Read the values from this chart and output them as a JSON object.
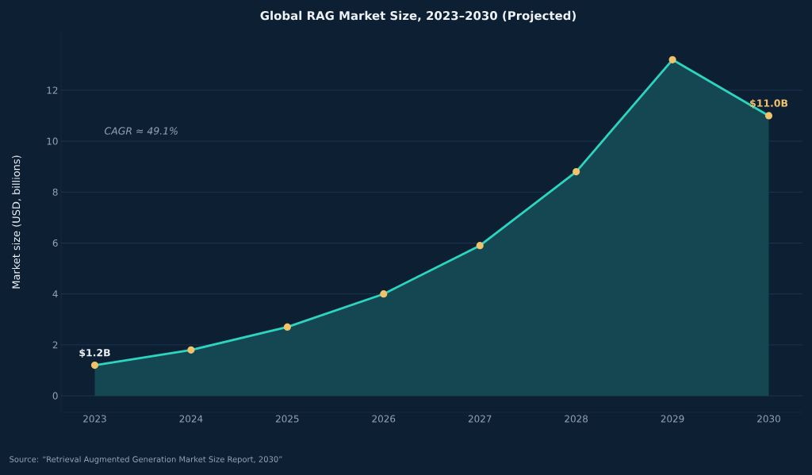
{
  "chart_data": {
    "type": "area",
    "title": "Global RAG Market Size, 2023–2030 (Projected)",
    "ylabel": "Market size (USD, billions)",
    "x": [
      2023,
      2024,
      2025,
      2026,
      2027,
      2028,
      2029,
      2030
    ],
    "series": [
      {
        "color": "#2dd4bf",
        "values": [
          1.2,
          1.8,
          2.7,
          4.0,
          5.9,
          8.8,
          13.2,
          11.0
        ]
      }
    ],
    "xlim": [
      2022.65,
      2030.35
    ],
    "xticks": [
      2023,
      2024,
      2025,
      2026,
      2027,
      2028,
      2029,
      2030
    ],
    "ylim": [
      -0.65,
      14.3
    ],
    "yticks": [
      0,
      2,
      4,
      6,
      8,
      10,
      12
    ],
    "grid": "y",
    "marker": "circle",
    "line_style": "solid",
    "annotations": [
      {
        "text": "$1.2B",
        "x": 2023,
        "y": 1.2
      },
      {
        "text": "$11.0B",
        "x": 2030,
        "y": 11.0
      },
      "CAGR ≈ 49.1%",
      "Source: “Retrieval Augmented Generation Market Size Report, 2030”"
    ]
  }
}
